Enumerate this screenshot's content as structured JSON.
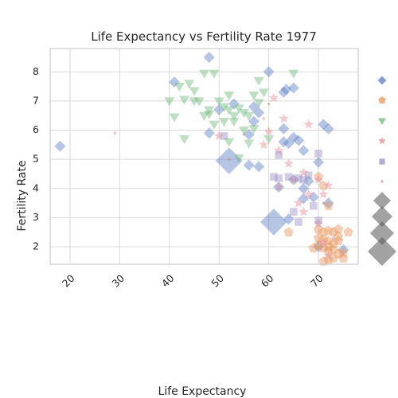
{
  "chart_data": {
    "type": "scatter",
    "title": "Life Expectancy vs Fertility Rate 1977",
    "xlabel": "Life Expectancy",
    "ylabel": "Fertility Rate",
    "xlim": [
      16,
      78
    ],
    "ylim": [
      1.4,
      8.8
    ],
    "xticks": [
      20,
      30,
      40,
      50,
      60,
      70
    ],
    "yticks": [
      2,
      3,
      4,
      5,
      6,
      7,
      8
    ],
    "grid": true,
    "legend_position": "right",
    "size_legend_count": 4,
    "series": [
      {
        "marker": "diamond",
        "color": "#5b7fc1",
        "points": [
          [
            18,
            5.45,
            1
          ],
          [
            41,
            7.65,
            1
          ],
          [
            48,
            8.5,
            1
          ],
          [
            60,
            8.0,
            1
          ],
          [
            50,
            6.7,
            1
          ],
          [
            53,
            6.9,
            1
          ],
          [
            57,
            6.8,
            1
          ],
          [
            58,
            6.6,
            1
          ],
          [
            63,
            7.3,
            1
          ],
          [
            63.5,
            7.4,
            1
          ],
          [
            65,
            7.45,
            1
          ],
          [
            57,
            6.3,
            1
          ],
          [
            48,
            5.9,
            1
          ],
          [
            56,
            5.85,
            1
          ],
          [
            63,
            6.05,
            1
          ],
          [
            65,
            5.75,
            1
          ],
          [
            63,
            5.6,
            1
          ],
          [
            64,
            5.55,
            1
          ],
          [
            66,
            5.65,
            1
          ],
          [
            67,
            5.3,
            1
          ],
          [
            71,
            6.2,
            1
          ],
          [
            72,
            6.05,
            1
          ],
          [
            70,
            4.9,
            1
          ],
          [
            52,
            4.95,
            3
          ],
          [
            56,
            4.8,
            1
          ],
          [
            58,
            4.75,
            1
          ],
          [
            62,
            4.05,
            1
          ],
          [
            65,
            4.3,
            1
          ],
          [
            68,
            4.25,
            1
          ],
          [
            67,
            4.0,
            1
          ],
          [
            69,
            3.7,
            1
          ],
          [
            67,
            3.65,
            1
          ],
          [
            61,
            2.85,
            3
          ],
          [
            64,
            2.95,
            1
          ],
          [
            72,
            3.5,
            1
          ],
          [
            75,
            1.9,
            1
          ],
          [
            70,
            2.0,
            1
          ]
        ]
      },
      {
        "marker": "pentagon",
        "color": "#e8955c",
        "points": [
          [
            64,
            2.5,
            1
          ],
          [
            70,
            2.6,
            1
          ],
          [
            71,
            2.5,
            1
          ],
          [
            72,
            2.55,
            1
          ],
          [
            73,
            2.5,
            1
          ],
          [
            74,
            2.6,
            1
          ],
          [
            76,
            2.5,
            1
          ],
          [
            70,
            2.3,
            1
          ],
          [
            71,
            2.25,
            1
          ],
          [
            72,
            2.2,
            1
          ],
          [
            73,
            2.1,
            1
          ],
          [
            74,
            2.2,
            1
          ],
          [
            70,
            2.05,
            1
          ],
          [
            71,
            1.95,
            1
          ],
          [
            72,
            1.85,
            1
          ],
          [
            73,
            1.9,
            1
          ],
          [
            74,
            1.75,
            1
          ],
          [
            75,
            1.8,
            1
          ],
          [
            72,
            1.55,
            1
          ],
          [
            73,
            1.6,
            1
          ],
          [
            75,
            1.6,
            1
          ],
          [
            71,
            1.5,
            1
          ],
          [
            70,
            4.4,
            1
          ],
          [
            71,
            4.1,
            1
          ],
          [
            72,
            3.4,
            1
          ],
          [
            69,
            1.95,
            1
          ],
          [
            74,
            2.35,
            1
          ],
          [
            72,
            2.0,
            1
          ]
        ]
      },
      {
        "marker": "triangle",
        "color": "#6fb77a",
        "points": [
          [
            47,
            7.95,
            1
          ],
          [
            49,
            7.95,
            1
          ],
          [
            65,
            7.95,
            1
          ],
          [
            40,
            7.0,
            1
          ],
          [
            42,
            7.5,
            1
          ],
          [
            44,
            7.6,
            1
          ],
          [
            45,
            7.35,
            1
          ],
          [
            45,
            7.0,
            1
          ],
          [
            43,
            7.05,
            1
          ],
          [
            46,
            7.0,
            1
          ],
          [
            48,
            6.7,
            1
          ],
          [
            50,
            7.0,
            1
          ],
          [
            52,
            7.2,
            1
          ],
          [
            51,
            6.8,
            1
          ],
          [
            52,
            6.7,
            1
          ],
          [
            53,
            6.5,
            1
          ],
          [
            54,
            6.75,
            1
          ],
          [
            55,
            6.6,
            1
          ],
          [
            56,
            6.5,
            1
          ],
          [
            57,
            7.2,
            1
          ],
          [
            58,
            7.7,
            1
          ],
          [
            59,
            7.3,
            1
          ],
          [
            47,
            6.5,
            1
          ],
          [
            48,
            6.55,
            1
          ],
          [
            49,
            6.2,
            1
          ],
          [
            51,
            6.3,
            1
          ],
          [
            53,
            6.3,
            1
          ],
          [
            55,
            6.0,
            1
          ],
          [
            57,
            6.05,
            1
          ],
          [
            52,
            5.6,
            1
          ],
          [
            56,
            5.55,
            1
          ],
          [
            60,
            5.7,
            1
          ],
          [
            43,
            5.7,
            1
          ],
          [
            41,
            6.45,
            1
          ],
          [
            58,
            6.95,
            1
          ],
          [
            54,
            5.05,
            1
          ]
        ]
      },
      {
        "marker": "star",
        "color": "#e28a96",
        "points": [
          [
            50,
            5.8,
            1
          ],
          [
            61,
            7.1,
            1
          ],
          [
            63,
            6.4,
            1
          ],
          [
            68,
            6.2,
            1
          ],
          [
            59,
            5.5,
            1
          ],
          [
            62,
            5.3,
            1
          ],
          [
            64,
            4.85,
            1
          ],
          [
            65,
            4.3,
            1
          ],
          [
            67,
            4.55,
            1
          ],
          [
            70,
            4.3,
            1
          ],
          [
            72,
            4.1,
            1
          ],
          [
            71,
            3.8,
            1
          ],
          [
            68,
            3.8,
            1
          ],
          [
            66,
            3.5,
            1
          ],
          [
            67,
            3.2,
            1
          ],
          [
            70,
            2.8,
            1
          ],
          [
            62,
            4.05,
            1
          ],
          [
            71,
            2.15,
            1
          ],
          [
            72,
            1.7,
            1
          ],
          [
            60,
            5.95,
            1
          ]
        ]
      },
      {
        "marker": "square",
        "color": "#9b8ec4",
        "points": [
          [
            51,
            5.8,
            1
          ],
          [
            62,
            5.15,
            1
          ],
          [
            61,
            4.4,
            1
          ],
          [
            62,
            4.35,
            1
          ],
          [
            64,
            4.4,
            1
          ],
          [
            66,
            4.35,
            1
          ],
          [
            67,
            4.3,
            1
          ],
          [
            68,
            4.45,
            1
          ],
          [
            70,
            5.2,
            1
          ],
          [
            66,
            2.85,
            1
          ],
          [
            69,
            3.4,
            1
          ],
          [
            70,
            2.9,
            1
          ],
          [
            65,
            3.2,
            1
          ]
        ]
      },
      {
        "marker": "dot",
        "color": "#c08a88",
        "points": [
          [
            29,
            5.9,
            1
          ],
          [
            52,
            5.0,
            1
          ],
          [
            55,
            5.85,
            1
          ],
          [
            60,
            6.9,
            1
          ],
          [
            59,
            6.4,
            1
          ],
          [
            71,
            3.5,
            1
          ],
          [
            73,
            2.3,
            1
          ]
        ]
      }
    ]
  }
}
